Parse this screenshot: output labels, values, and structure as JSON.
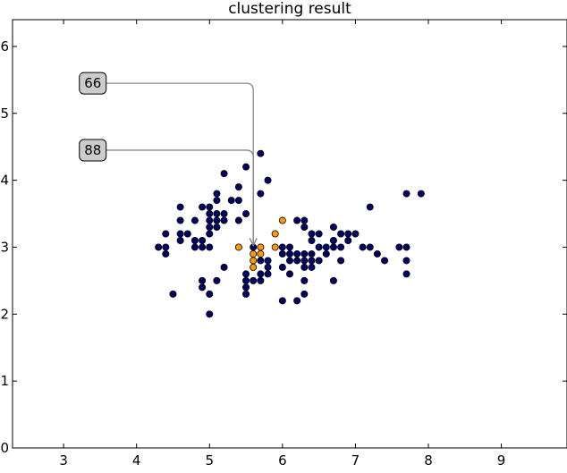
{
  "chart_data": {
    "type": "scatter",
    "title": "clustering result",
    "xlabel": "",
    "ylabel": "",
    "xlim": [
      2.3,
      9.9
    ],
    "ylim": [
      0,
      6.4
    ],
    "xticks": [
      3,
      4,
      5,
      6,
      7,
      8,
      9
    ],
    "yticks": [
      0,
      1,
      2,
      3,
      4,
      5,
      6
    ],
    "grid": false,
    "legend": "none",
    "series": [
      {
        "color": "#000066",
        "points": [
          [
            4.3,
            3.0
          ],
          [
            4.4,
            2.9
          ],
          [
            4.4,
            3.0
          ],
          [
            4.4,
            3.2
          ],
          [
            4.5,
            2.3
          ],
          [
            4.6,
            3.1
          ],
          [
            4.6,
            3.2
          ],
          [
            4.6,
            3.4
          ],
          [
            4.6,
            3.6
          ],
          [
            4.7,
            3.2
          ],
          [
            4.8,
            3.0
          ],
          [
            4.8,
            3.1
          ],
          [
            4.8,
            3.4
          ],
          [
            4.9,
            2.4
          ],
          [
            4.9,
            2.5
          ],
          [
            4.9,
            3.0
          ],
          [
            4.9,
            3.1
          ],
          [
            4.9,
            3.6
          ],
          [
            5.0,
            2.0
          ],
          [
            5.0,
            2.3
          ],
          [
            5.0,
            3.0
          ],
          [
            5.0,
            3.2
          ],
          [
            5.0,
            3.3
          ],
          [
            5.0,
            3.4
          ],
          [
            5.0,
            3.5
          ],
          [
            5.0,
            3.6
          ],
          [
            5.1,
            2.5
          ],
          [
            5.1,
            3.3
          ],
          [
            5.1,
            3.4
          ],
          [
            5.1,
            3.5
          ],
          [
            5.1,
            3.7
          ],
          [
            5.1,
            3.8
          ],
          [
            5.2,
            2.7
          ],
          [
            5.2,
            3.4
          ],
          [
            5.2,
            3.5
          ],
          [
            5.2,
            4.1
          ],
          [
            5.3,
            3.7
          ],
          [
            5.4,
            3.4
          ],
          [
            5.4,
            3.7
          ],
          [
            5.4,
            3.9
          ],
          [
            5.5,
            2.3
          ],
          [
            5.5,
            2.4
          ],
          [
            5.5,
            2.5
          ],
          [
            5.5,
            2.6
          ],
          [
            5.5,
            3.5
          ],
          [
            5.5,
            4.2
          ],
          [
            5.6,
            2.5
          ],
          [
            5.6,
            3.0
          ],
          [
            5.7,
            2.5
          ],
          [
            5.7,
            2.6
          ],
          [
            5.7,
            2.8
          ],
          [
            5.7,
            3.8
          ],
          [
            5.7,
            4.4
          ],
          [
            5.8,
            2.6
          ],
          [
            5.8,
            2.7
          ],
          [
            5.8,
            2.8
          ],
          [
            5.8,
            4.0
          ],
          [
            6.0,
            2.2
          ],
          [
            6.0,
            2.7
          ],
          [
            6.0,
            2.9
          ],
          [
            6.0,
            3.0
          ],
          [
            6.1,
            2.6
          ],
          [
            6.1,
            2.8
          ],
          [
            6.1,
            2.9
          ],
          [
            6.1,
            3.0
          ],
          [
            6.2,
            2.2
          ],
          [
            6.2,
            2.8
          ],
          [
            6.2,
            2.9
          ],
          [
            6.2,
            3.4
          ],
          [
            6.3,
            2.3
          ],
          [
            6.3,
            2.5
          ],
          [
            6.3,
            2.7
          ],
          [
            6.3,
            2.8
          ],
          [
            6.3,
            2.9
          ],
          [
            6.3,
            3.3
          ],
          [
            6.3,
            3.4
          ],
          [
            6.4,
            2.7
          ],
          [
            6.4,
            2.8
          ],
          [
            6.4,
            2.9
          ],
          [
            6.4,
            3.1
          ],
          [
            6.4,
            3.2
          ],
          [
            6.5,
            2.8
          ],
          [
            6.5,
            3.0
          ],
          [
            6.5,
            3.2
          ],
          [
            6.6,
            2.9
          ],
          [
            6.6,
            3.0
          ],
          [
            6.7,
            2.5
          ],
          [
            6.7,
            3.0
          ],
          [
            6.7,
            3.1
          ],
          [
            6.7,
            3.3
          ],
          [
            6.8,
            2.8
          ],
          [
            6.8,
            3.0
          ],
          [
            6.8,
            3.2
          ],
          [
            6.9,
            3.1
          ],
          [
            6.9,
            3.2
          ],
          [
            7.0,
            3.2
          ],
          [
            7.1,
            3.0
          ],
          [
            7.2,
            3.0
          ],
          [
            7.2,
            3.6
          ],
          [
            7.3,
            2.9
          ],
          [
            7.4,
            2.8
          ],
          [
            7.6,
            3.0
          ],
          [
            7.7,
            2.6
          ],
          [
            7.7,
            2.8
          ],
          [
            7.7,
            3.0
          ],
          [
            7.7,
            3.8
          ],
          [
            7.9,
            3.8
          ]
        ]
      },
      {
        "color": "#ff9900",
        "points": [
          [
            5.4,
            3.0
          ],
          [
            5.6,
            2.7
          ],
          [
            5.6,
            2.8
          ],
          [
            5.6,
            2.9
          ],
          [
            5.7,
            2.9
          ],
          [
            5.7,
            3.0
          ],
          [
            5.9,
            3.0
          ],
          [
            5.9,
            3.2
          ],
          [
            6.0,
            3.4
          ]
        ]
      }
    ],
    "annotations": [
      {
        "text": "66",
        "target": [
          5.6,
          3.0
        ],
        "label_at": [
          3.4,
          5.45
        ]
      },
      {
        "text": "88",
        "target": [
          5.6,
          3.0
        ],
        "label_at": [
          3.4,
          4.45
        ]
      }
    ]
  }
}
